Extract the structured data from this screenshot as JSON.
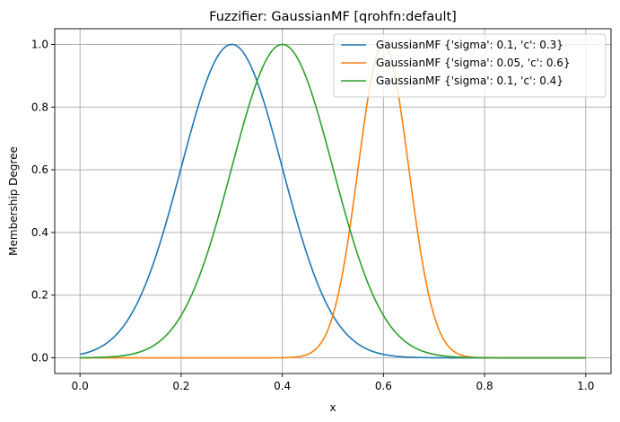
{
  "chart_data": {
    "type": "line",
    "title": "Fuzzifier: GaussianMF [qrohfn:default]",
    "xlabel": "x",
    "ylabel": "Membership Degree",
    "xlim": [
      -0.05,
      1.05
    ],
    "ylim": [
      -0.05,
      1.05
    ],
    "xticks": [
      0.0,
      0.2,
      0.4,
      0.6,
      0.8,
      1.0
    ],
    "xtick_labels": [
      "0.0",
      "0.2",
      "0.4",
      "0.6",
      "0.8",
      "1.0"
    ],
    "yticks": [
      0.0,
      0.2,
      0.4,
      0.6,
      0.8,
      1.0
    ],
    "ytick_labels": [
      "0.0",
      "0.2",
      "0.4",
      "0.6",
      "0.8",
      "1.0"
    ],
    "grid": true,
    "legend_position": "top-right",
    "x_range": [
      0.0,
      1.0
    ],
    "series": [
      {
        "name": "GaussianMF {'sigma': 0.1, 'c': 0.3}",
        "sigma": 0.1,
        "c": 0.3,
        "color": "#1f77b4"
      },
      {
        "name": "GaussianMF {'sigma': 0.05, 'c': 0.6}",
        "sigma": 0.05,
        "c": 0.6,
        "color": "#ff7f0e"
      },
      {
        "name": "GaussianMF {'sigma': 0.1, 'c': 0.4}",
        "sigma": 0.1,
        "c": 0.4,
        "color": "#2ca02c"
      }
    ]
  }
}
